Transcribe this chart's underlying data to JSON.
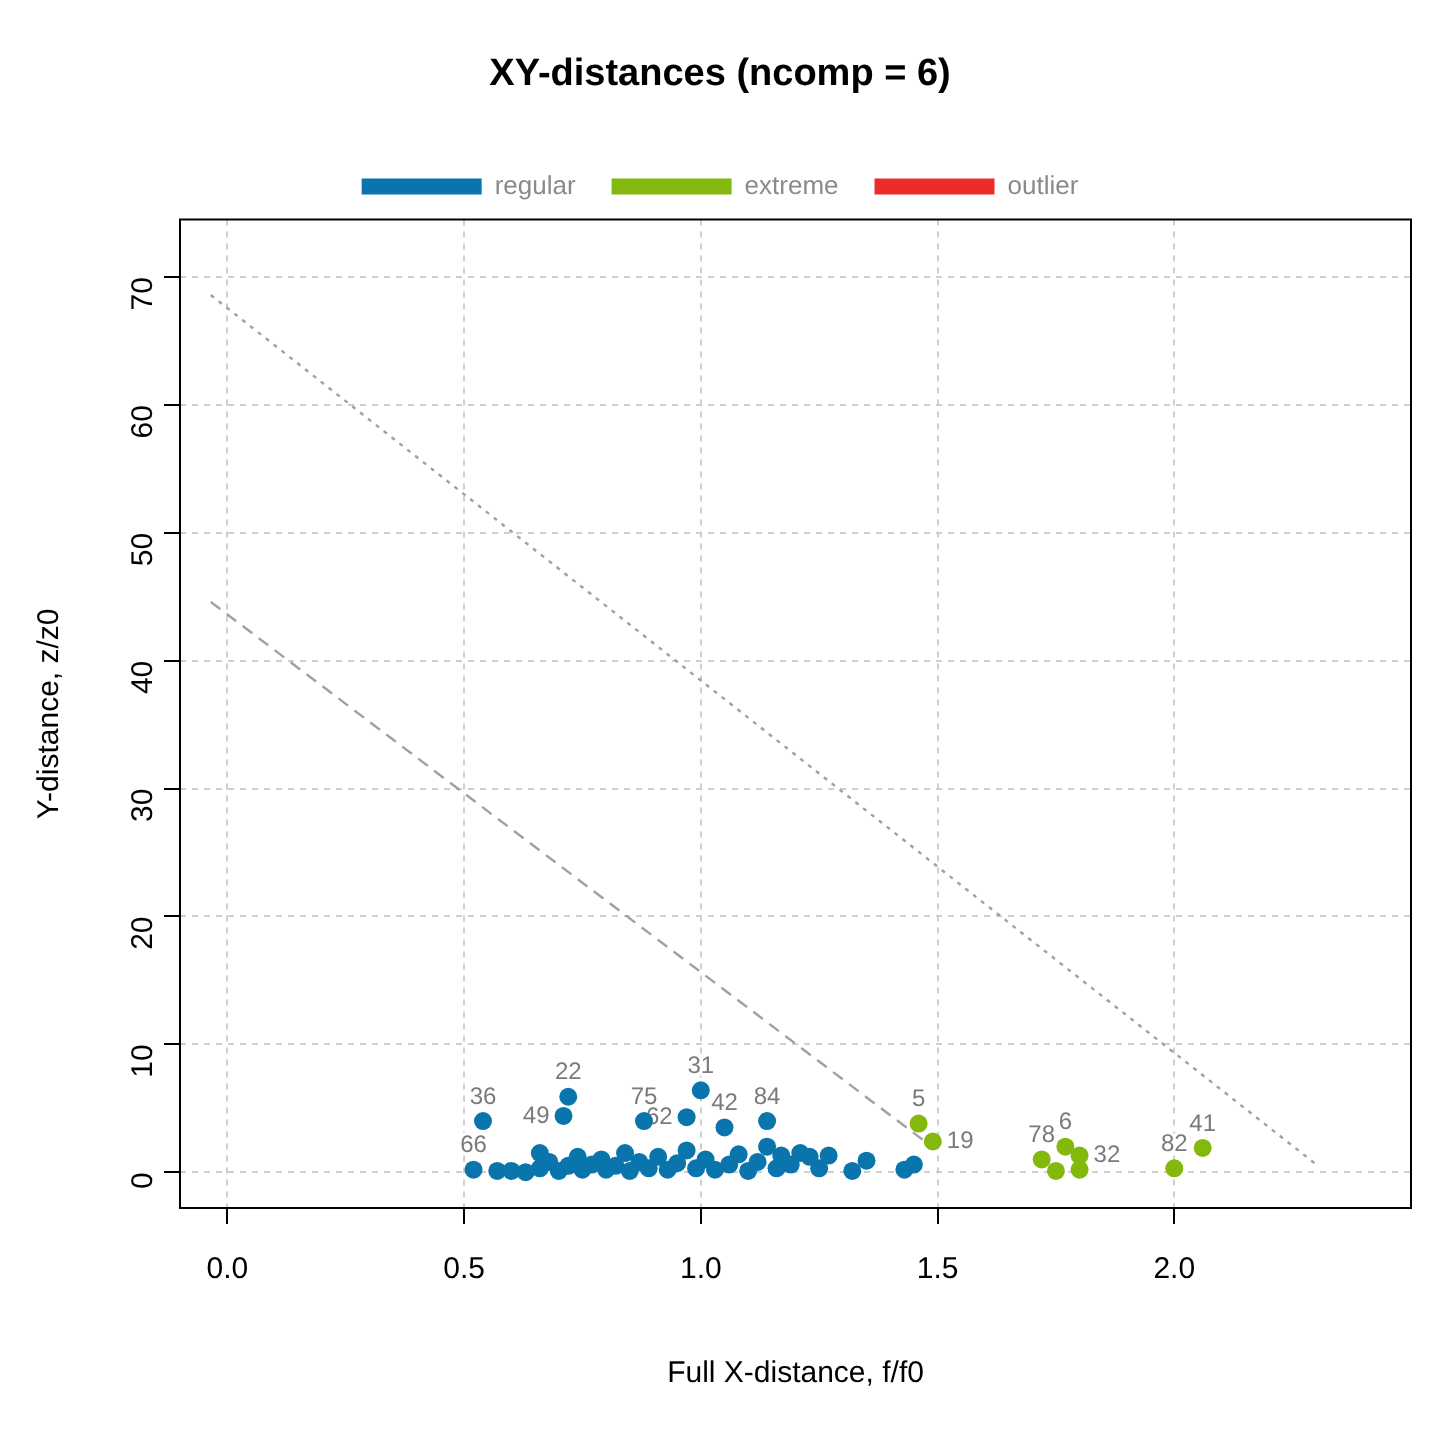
{
  "chart_data": {
    "type": "scatter",
    "title": "XY-distances (ncomp = 6)",
    "xlabel": "Full X-distance, f/f0",
    "ylabel": "Y-distance, z/z0",
    "xlim": [
      -0.1,
      2.5
    ],
    "ylim": [
      -2.8,
      74.5
    ],
    "xticks": [
      {
        "value": 0,
        "label": "0.0"
      },
      {
        "value": 0.5,
        "label": "0.5"
      },
      {
        "value": 1,
        "label": "1.0"
      },
      {
        "value": 1.5,
        "label": "1.5"
      },
      {
        "value": 2,
        "label": "2.0"
      }
    ],
    "yticks": [
      0,
      10,
      20,
      30,
      40,
      50,
      60,
      70
    ],
    "grid": true,
    "legend": "top",
    "marker": "circle",
    "series": [
      {
        "name": "regular",
        "color": "#0a75ad",
        "x": [
          0.52,
          0.54,
          0.57,
          0.6,
          0.63,
          0.66,
          0.66,
          0.68,
          0.7,
          0.72,
          0.71,
          0.72,
          0.74,
          0.75,
          0.77,
          0.79,
          0.8,
          0.82,
          0.84,
          0.85,
          0.88,
          0.87,
          0.89,
          0.91,
          0.93,
          0.95,
          0.97,
          0.97,
          0.99,
          1.0,
          1.01,
          1.03,
          1.05,
          1.06,
          1.08,
          1.1,
          1.12,
          1.14,
          1.14,
          1.16,
          1.17,
          1.19,
          1.21,
          1.23,
          1.25,
          1.27,
          1.32,
          1.35,
          1.43,
          1.45
        ],
        "values": [
          0.2,
          4.0,
          0.1,
          0.1,
          0.0,
          0.3,
          1.5,
          0.8,
          0.1,
          5.9,
          4.4,
          0.5,
          1.2,
          0.2,
          0.6,
          1.0,
          0.2,
          0.5,
          1.5,
          0.1,
          4.0,
          0.8,
          0.3,
          1.2,
          0.2,
          0.7,
          4.3,
          1.7,
          0.3,
          6.4,
          1.0,
          0.2,
          3.5,
          0.6,
          1.4,
          0.1,
          0.8,
          4.0,
          2.0,
          0.3,
          1.3,
          0.6,
          1.5,
          1.2,
          0.3,
          1.3,
          0.1,
          0.9,
          0.2,
          0.6
        ]
      },
      {
        "name": "extreme",
        "color": "#83b80d",
        "x": [
          1.46,
          1.49,
          1.72,
          1.75,
          1.77,
          1.8,
          1.8,
          2.0,
          2.06
        ],
        "values": [
          3.8,
          2.4,
          1.0,
          0.1,
          2.0,
          1.3,
          0.2,
          0.3,
          1.9
        ]
      },
      {
        "name": "outlier",
        "color": "#ec2b2b"
      },
      {
        "type": "line",
        "color": "#a0a0a0",
        "line_style": "dotted",
        "marker": "none",
        "x": [
          -0.035,
          2.3
        ],
        "values": [
          68.6,
          0.6
        ]
      },
      {
        "type": "line",
        "color": "#a0a0a0",
        "line_style": "dashed",
        "marker": "none",
        "x": [
          -0.035,
          1.47
        ],
        "values": [
          44.6,
          2.5
        ]
      }
    ],
    "annotations": [
      {
        "text": "66",
        "x": 0.52,
        "y": 0.2
      },
      {
        "text": "36",
        "x": 0.54,
        "y": 4.0
      },
      {
        "text": "22",
        "x": 0.72,
        "y": 5.9
      },
      {
        "text": "49",
        "x": 0.71,
        "y": 4.4
      },
      {
        "text": "75",
        "x": 0.88,
        "y": 4.0
      },
      {
        "text": "62",
        "x": 0.97,
        "y": 4.3
      },
      {
        "text": "31",
        "x": 1.0,
        "y": 6.4
      },
      {
        "text": "42",
        "x": 1.05,
        "y": 3.5
      },
      {
        "text": "84",
        "x": 1.14,
        "y": 4.0
      },
      {
        "text": "5",
        "x": 1.46,
        "y": 3.8
      },
      {
        "text": "19",
        "x": 1.49,
        "y": 2.4
      },
      {
        "text": "78",
        "x": 1.72,
        "y": 1.0
      },
      {
        "text": "32",
        "x": 1.8,
        "y": 1.3
      },
      {
        "text": "6",
        "x": 1.77,
        "y": 2.0
      },
      {
        "text": "82",
        "x": 2.0,
        "y": 0.3
      },
      {
        "text": "41",
        "x": 2.06,
        "y": 1.9
      }
    ]
  }
}
